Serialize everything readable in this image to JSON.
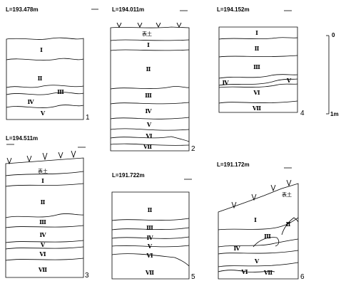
{
  "sections": [
    {
      "elevation": "L=193.478m",
      "number": "1",
      "layers": [
        "Ⅰ",
        "Ⅱ",
        "Ⅲ",
        "Ⅳ",
        "Ⅴ"
      ]
    },
    {
      "elevation": "L=194.011m",
      "number": "2",
      "layers": [
        "表土",
        "Ⅰ",
        "Ⅱ",
        "Ⅲ",
        "Ⅳ",
        "Ⅴ",
        "Ⅵ",
        "Ⅶ"
      ]
    },
    {
      "elevation": "L=194.152m",
      "number": "4",
      "layers": [
        "Ⅰ",
        "Ⅱ",
        "Ⅲ",
        "Ⅳ",
        "Ⅴ",
        "Ⅵ",
        "Ⅶ"
      ]
    },
    {
      "elevation": "L=194.511m",
      "number": "3",
      "layers": [
        "表土",
        "Ⅰ",
        "Ⅱ",
        "Ⅲ",
        "Ⅳ",
        "Ⅴ",
        "Ⅵ",
        "Ⅶ"
      ]
    },
    {
      "elevation": "L=191.722m",
      "number": "5",
      "layers": [
        "Ⅱ",
        "Ⅲ",
        "Ⅳ",
        "Ⅴ",
        "Ⅵ",
        "Ⅶ"
      ]
    },
    {
      "elevation": "L=191.172m",
      "number": "6",
      "layers": [
        "表土",
        "Ⅰ",
        "Ⅱ",
        "Ⅲ",
        "Ⅳ",
        "Ⅴ",
        "Ⅵ",
        "Ⅶ"
      ]
    }
  ],
  "scale": {
    "top": "0",
    "bottom": "1m"
  }
}
